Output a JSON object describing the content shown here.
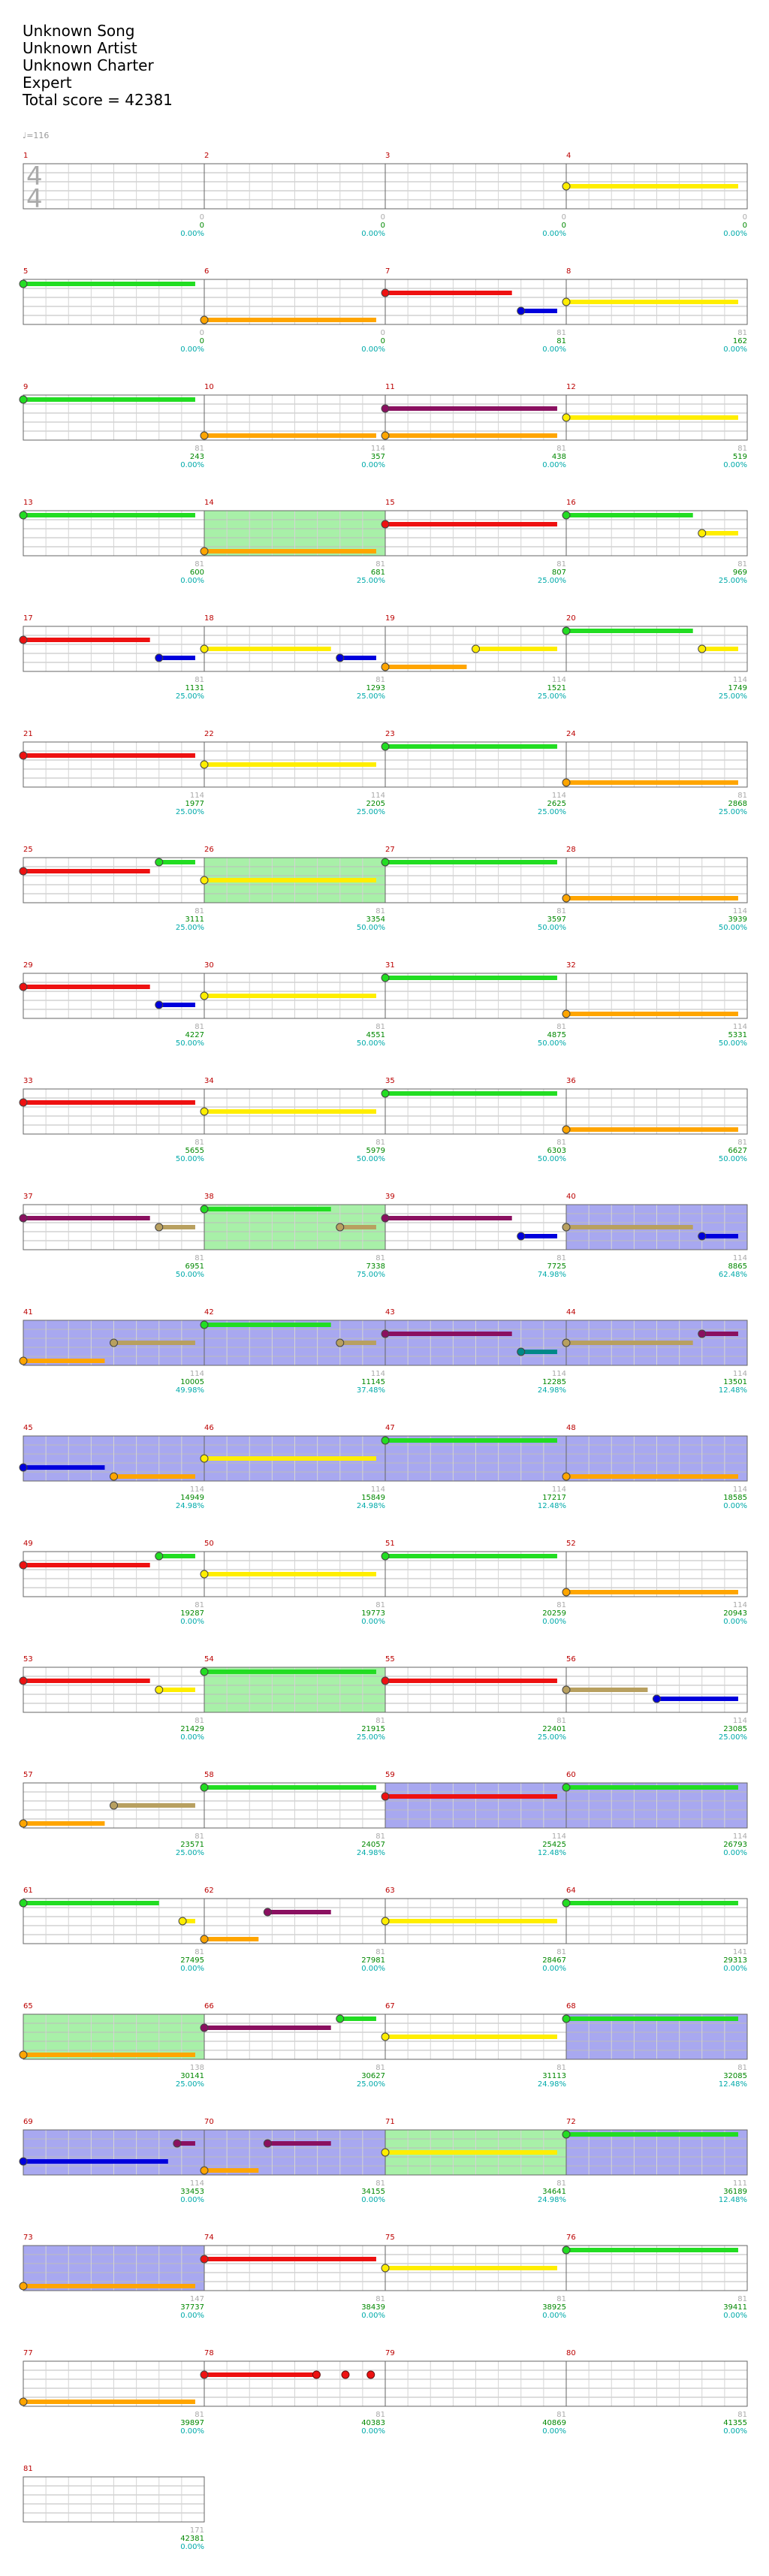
{
  "header": {
    "song": "Unknown Song",
    "artist": "Unknown Artist",
    "charter": "Unknown Charter",
    "difficulty": "Expert",
    "total_score": "Total score = 42381"
  },
  "tempo": "♩=116",
  "colors": {
    "green": "#22dd22",
    "red": "#ee1111",
    "yellow": "#ffee00",
    "blue": "#0000dd",
    "orange": "#ffa500",
    "sp_note": "#999999",
    "sp_sustain_red": "#8a1060",
    "sp_sustain_yellow": "#b8a060",
    "star_power": "#2ee82e",
    "solo": "#5555ee",
    "measure_number": "#bb0000",
    "score_text": "#008800",
    "percent_text": "#00aaaa",
    "stats_grey": "#aaaaaa"
  },
  "time_signature": [
    "4",
    "4"
  ],
  "measures": [
    {
      "n": "1",
      "stat": "0",
      "score": "0",
      "pct": "0.00%"
    },
    {
      "n": "2",
      "stat": "0",
      "score": "0",
      "pct": "0.00%"
    },
    {
      "n": "3",
      "stat": "0",
      "score": "0",
      "pct": "0.00%"
    },
    {
      "n": "4",
      "stat": "0",
      "score": "0",
      "pct": "0.00%"
    },
    {
      "n": "5",
      "stat": "0",
      "score": "0",
      "pct": "0.00%"
    },
    {
      "n": "6",
      "stat": "0",
      "score": "0",
      "pct": "0.00%"
    },
    {
      "n": "7",
      "stat": "81",
      "score": "81",
      "pct": "0.00%"
    },
    {
      "n": "8",
      "stat": "81",
      "score": "162",
      "pct": "0.00%"
    },
    {
      "n": "9",
      "stat": "81",
      "score": "243",
      "pct": "0.00%"
    },
    {
      "n": "10",
      "stat": "114",
      "score": "357",
      "pct": "0.00%"
    },
    {
      "n": "11",
      "stat": "81",
      "score": "438",
      "pct": "0.00%"
    },
    {
      "n": "12",
      "stat": "81",
      "score": "519",
      "pct": "0.00%"
    },
    {
      "n": "13",
      "stat": "81",
      "score": "600",
      "pct": "0.00%"
    },
    {
      "n": "14",
      "stat": "81",
      "score": "681",
      "pct": "25.00%"
    },
    {
      "n": "15",
      "stat": "81",
      "score": "807",
      "pct": "25.00%"
    },
    {
      "n": "16",
      "stat": "81",
      "score": "969",
      "pct": "25.00%"
    },
    {
      "n": "17",
      "stat": "81",
      "score": "1131",
      "pct": "25.00%"
    },
    {
      "n": "18",
      "stat": "81",
      "score": "1293",
      "pct": "25.00%"
    },
    {
      "n": "19",
      "stat": "114",
      "score": "1521",
      "pct": "25.00%"
    },
    {
      "n": "20",
      "stat": "114",
      "score": "1749",
      "pct": "25.00%"
    },
    {
      "n": "21",
      "stat": "114",
      "score": "1977",
      "pct": "25.00%"
    },
    {
      "n": "22",
      "stat": "114",
      "score": "2205",
      "pct": "25.00%"
    },
    {
      "n": "23",
      "stat": "114",
      "score": "2625",
      "pct": "25.00%"
    },
    {
      "n": "24",
      "stat": "81",
      "score": "2868",
      "pct": "25.00%"
    },
    {
      "n": "25",
      "stat": "81",
      "score": "3111",
      "pct": "25.00%"
    },
    {
      "n": "26",
      "stat": "81",
      "score": "3354",
      "pct": "50.00%"
    },
    {
      "n": "27",
      "stat": "81",
      "score": "3597",
      "pct": "50.00%"
    },
    {
      "n": "28",
      "stat": "114",
      "score": "3939",
      "pct": "50.00%"
    },
    {
      "n": "29",
      "stat": "81",
      "score": "4227",
      "pct": "50.00%"
    },
    {
      "n": "30",
      "stat": "81",
      "score": "4551",
      "pct": "50.00%"
    },
    {
      "n": "31",
      "stat": "81",
      "score": "4875",
      "pct": "50.00%"
    },
    {
      "n": "32",
      "stat": "114",
      "score": "5331",
      "pct": "50.00%"
    },
    {
      "n": "33",
      "stat": "81",
      "score": "5655",
      "pct": "50.00%"
    },
    {
      "n": "34",
      "stat": "81",
      "score": "5979",
      "pct": "50.00%"
    },
    {
      "n": "35",
      "stat": "81",
      "score": "6303",
      "pct": "50.00%"
    },
    {
      "n": "36",
      "stat": "81",
      "score": "6627",
      "pct": "50.00%"
    },
    {
      "n": "37",
      "stat": "81",
      "score": "6951",
      "pct": "50.00%"
    },
    {
      "n": "38",
      "stat": "81",
      "score": "7338",
      "pct": "75.00%"
    },
    {
      "n": "39",
      "stat": "81",
      "score": "7725",
      "pct": "74.98%"
    },
    {
      "n": "40",
      "stat": "114",
      "score": "8865",
      "pct": "62.48%"
    },
    {
      "n": "41",
      "stat": "114",
      "score": "10005",
      "pct": "49.98%"
    },
    {
      "n": "42",
      "stat": "114",
      "score": "11145",
      "pct": "37.48%"
    },
    {
      "n": "43",
      "stat": "114",
      "score": "12285",
      "pct": "24.98%"
    },
    {
      "n": "44",
      "stat": "114",
      "score": "13501",
      "pct": "12.48%"
    },
    {
      "n": "45",
      "stat": "114",
      "score": "14949",
      "pct": "24.98%"
    },
    {
      "n": "46",
      "stat": "114",
      "score": "15849",
      "pct": "24.98%"
    },
    {
      "n": "47",
      "stat": "114",
      "score": "17217",
      "pct": "12.48%"
    },
    {
      "n": "48",
      "stat": "114",
      "score": "18585",
      "pct": "0.00%"
    },
    {
      "n": "49",
      "stat": "81",
      "score": "19287",
      "pct": "0.00%"
    },
    {
      "n": "50",
      "stat": "81",
      "score": "19773",
      "pct": "0.00%"
    },
    {
      "n": "51",
      "stat": "81",
      "score": "20259",
      "pct": "0.00%"
    },
    {
      "n": "52",
      "stat": "114",
      "score": "20943",
      "pct": "0.00%"
    },
    {
      "n": "53",
      "stat": "81",
      "score": "21429",
      "pct": "0.00%"
    },
    {
      "n": "54",
      "stat": "81",
      "score": "21915",
      "pct": "25.00%"
    },
    {
      "n": "55",
      "stat": "81",
      "score": "22401",
      "pct": "25.00%"
    },
    {
      "n": "56",
      "stat": "114",
      "score": "23085",
      "pct": "25.00%"
    },
    {
      "n": "57",
      "stat": "81",
      "score": "23571",
      "pct": "25.00%"
    },
    {
      "n": "58",
      "stat": "81",
      "score": "24057",
      "pct": "24.98%"
    },
    {
      "n": "59",
      "stat": "114",
      "score": "25425",
      "pct": "12.48%"
    },
    {
      "n": "60",
      "stat": "114",
      "score": "26793",
      "pct": "0.00%"
    },
    {
      "n": "61",
      "stat": "81",
      "score": "27495",
      "pct": "0.00%"
    },
    {
      "n": "62",
      "stat": "81",
      "score": "27981",
      "pct": "0.00%"
    },
    {
      "n": "63",
      "stat": "81",
      "score": "28467",
      "pct": "0.00%"
    },
    {
      "n": "64",
      "stat": "141",
      "score": "29313",
      "pct": "0.00%"
    },
    {
      "n": "65",
      "stat": "138",
      "score": "30141",
      "pct": "25.00%"
    },
    {
      "n": "66",
      "stat": "81",
      "score": "30627",
      "pct": "25.00%"
    },
    {
      "n": "67",
      "stat": "81",
      "score": "31113",
      "pct": "24.98%"
    },
    {
      "n": "68",
      "stat": "81",
      "score": "32085",
      "pct": "12.48%"
    },
    {
      "n": "69",
      "stat": "114",
      "score": "33453",
      "pct": "0.00%"
    },
    {
      "n": "70",
      "stat": "81",
      "score": "34155",
      "pct": "0.00%"
    },
    {
      "n": "71",
      "stat": "81",
      "score": "34641",
      "pct": "24.98%"
    },
    {
      "n": "72",
      "stat": "111",
      "score": "36189",
      "pct": "12.48%"
    },
    {
      "n": "73",
      "stat": "147",
      "score": "37737",
      "pct": "0.00%"
    },
    {
      "n": "74",
      "stat": "81",
      "score": "38439",
      "pct": "0.00%"
    },
    {
      "n": "75",
      "stat": "81",
      "score": "38925",
      "pct": "0.00%"
    },
    {
      "n": "76",
      "stat": "81",
      "score": "39411",
      "pct": "0.00%"
    },
    {
      "n": "77",
      "stat": "81",
      "score": "39897",
      "pct": "0.00%"
    },
    {
      "n": "78",
      "stat": "81",
      "score": "40383",
      "pct": "0.00%"
    },
    {
      "n": "79",
      "stat": "81",
      "score": "40869",
      "pct": "0.00%"
    },
    {
      "n": "80",
      "stat": "81",
      "score": "41355",
      "pct": "0.00%"
    },
    {
      "n": "81",
      "stat": "171",
      "score": "42381",
      "pct": "0.00%"
    }
  ],
  "star_power_measures": [
    14,
    26,
    38,
    54,
    65,
    71
  ],
  "solo_measures": [
    40,
    41,
    42,
    43,
    44,
    45,
    46,
    47,
    48,
    59,
    60,
    68,
    69,
    70,
    72,
    73
  ],
  "notes": [
    [
      3,
      "yellow",
      0.0,
      0.95
    ],
    [
      4,
      "green",
      0.0,
      0.95
    ],
    [
      5,
      "orange",
      0.0,
      0.95
    ],
    [
      6,
      "red",
      0.0,
      0.7
    ],
    [
      6,
      "blue",
      0.75,
      0.95
    ],
    [
      7,
      "yellow",
      0.0,
      0.95
    ],
    [
      8,
      "green",
      0.0,
      0.95
    ],
    [
      9,
      "orange",
      0.0,
      0.95
    ],
    [
      10,
      "orange",
      0.0,
      0.95
    ],
    [
      10,
      "sp_red",
      0.0,
      0.95
    ],
    [
      11,
      "yellow",
      0.0,
      0.95
    ],
    [
      12,
      "green",
      0.0,
      0.95
    ],
    [
      13,
      "orange",
      0.0,
      0.95
    ],
    [
      14,
      "red",
      0.0,
      0.95
    ],
    [
      15,
      "green",
      0.0,
      0.7
    ],
    [
      15,
      "yellow",
      0.75,
      0.95
    ],
    [
      16,
      "red",
      0.0,
      0.7
    ],
    [
      16,
      "blue",
      0.75,
      0.95
    ],
    [
      17,
      "yellow",
      0.0,
      0.7
    ],
    [
      17,
      "blue",
      0.75,
      0.95
    ],
    [
      18,
      "orange",
      0.0,
      0.45
    ],
    [
      18,
      "yellow",
      0.5,
      0.95
    ],
    [
      19,
      "green",
      0.0,
      0.7
    ],
    [
      19,
      "yellow",
      0.75,
      0.95
    ],
    [
      20,
      "red",
      0.0,
      0.95
    ],
    [
      21,
      "yellow",
      0.0,
      0.95
    ],
    [
      22,
      "green",
      0.0,
      0.95
    ],
    [
      23,
      "orange",
      0.0,
      0.95
    ],
    [
      24,
      "red",
      0.0,
      0.7
    ],
    [
      24,
      "green",
      0.75,
      0.95
    ],
    [
      25,
      "yellow",
      0.0,
      0.95
    ],
    [
      26,
      "green",
      0.0,
      0.95
    ],
    [
      27,
      "orange",
      0.0,
      0.95
    ],
    [
      28,
      "red",
      0.0,
      0.7
    ],
    [
      28,
      "blue",
      0.75,
      0.95
    ],
    [
      29,
      "yellow",
      0.0,
      0.95
    ],
    [
      30,
      "green",
      0.0,
      0.95
    ],
    [
      31,
      "orange",
      0.0,
      0.95
    ],
    [
      32,
      "red",
      0.0,
      0.95
    ],
    [
      33,
      "yellow",
      0.0,
      0.95
    ],
    [
      34,
      "green",
      0.0,
      0.95
    ],
    [
      35,
      "orange",
      0.0,
      0.95
    ],
    [
      36,
      "sp_red",
      0.0,
      0.7
    ],
    [
      36,
      "sp_yellow",
      0.75,
      0.95
    ],
    [
      37,
      "green",
      0.0,
      0.7
    ],
    [
      37,
      "sp_yellow",
      0.75,
      0.95
    ],
    [
      38,
      "sp_red",
      0.0,
      0.7
    ],
    [
      38,
      "blue",
      0.75,
      0.95
    ],
    [
      39,
      "sp_yellow",
      0.0,
      0.7
    ],
    [
      39,
      "blue",
      0.75,
      0.95
    ],
    [
      40,
      "orange",
      0.0,
      0.45
    ],
    [
      40,
      "sp_yellow",
      0.5,
      0.95
    ],
    [
      41,
      "green",
      0.0,
      0.7
    ],
    [
      41,
      "sp_yellow",
      0.75,
      0.95
    ],
    [
      42,
      "sp_red",
      0.0,
      0.7
    ],
    [
      42,
      "teal",
      0.75,
      0.95
    ],
    [
      43,
      "sp_yellow",
      0.0,
      0.7
    ],
    [
      43,
      "sp_red",
      0.75,
      0.95
    ],
    [
      44,
      "blue",
      0.0,
      0.45
    ],
    [
      44,
      "orange",
      0.5,
      0.95
    ],
    [
      45,
      "yellow",
      0.0,
      0.95
    ],
    [
      46,
      "green",
      0.0,
      0.95
    ],
    [
      47,
      "orange",
      0.0,
      0.95
    ],
    [
      48,
      "red",
      0.0,
      0.7
    ],
    [
      48,
      "green",
      0.75,
      0.95
    ],
    [
      49,
      "yellow",
      0.0,
      0.95
    ],
    [
      50,
      "green",
      0.0,
      0.95
    ],
    [
      51,
      "orange",
      0.0,
      0.95
    ],
    [
      52,
      "red",
      0.0,
      0.7
    ],
    [
      52,
      "yellow",
      0.75,
      0.95
    ],
    [
      53,
      "green",
      0.0,
      0.95
    ],
    [
      54,
      "red",
      0.0,
      0.95
    ],
    [
      55,
      "sp_yellow",
      0.0,
      0.45
    ],
    [
      55,
      "blue",
      0.5,
      0.95
    ],
    [
      56,
      "orange",
      0.0,
      0.45
    ],
    [
      56,
      "sp_yellow",
      0.5,
      0.95
    ],
    [
      57,
      "green",
      0.0,
      0.95
    ],
    [
      58,
      "red",
      0.0,
      0.95
    ],
    [
      59,
      "green",
      0.0,
      0.95
    ],
    [
      60,
      "green",
      0.0,
      0.75
    ],
    [
      60,
      "yellow",
      0.88,
      0.95
    ],
    [
      61,
      "sp_red",
      0.35,
      0.7
    ],
    [
      61,
      "orange",
      0.0,
      0.3
    ],
    [
      62,
      "yellow",
      0.0,
      0.95
    ],
    [
      63,
      "green",
      0.0,
      0.95
    ],
    [
      64,
      "orange",
      0.0,
      0.95
    ],
    [
      65,
      "sp_red",
      0.0,
      0.7
    ],
    [
      65,
      "green",
      0.75,
      0.95
    ],
    [
      66,
      "yellow",
      0.0,
      0.95
    ],
    [
      67,
      "green",
      0.0,
      0.95
    ],
    [
      68,
      "blue",
      0.0,
      0.8
    ],
    [
      68,
      "sp_red",
      0.85,
      0.95
    ],
    [
      69,
      "sp_red",
      0.35,
      0.7
    ],
    [
      69,
      "orange",
      0.0,
      0.3
    ],
    [
      70,
      "yellow",
      0.0,
      0.95
    ],
    [
      71,
      "green",
      0.0,
      0.95
    ],
    [
      72,
      "orange",
      0.0,
      0.95
    ],
    [
      73,
      "red",
      0.0,
      0.95
    ],
    [
      74,
      "yellow",
      0.0,
      0.95
    ],
    [
      75,
      "green",
      0.0,
      0.95
    ],
    [
      76,
      "orange",
      0.0,
      0.95
    ],
    [
      77,
      "red",
      0.0,
      0.6
    ],
    [
      77,
      "red_dots",
      0.62,
      0.95
    ]
  ]
}
